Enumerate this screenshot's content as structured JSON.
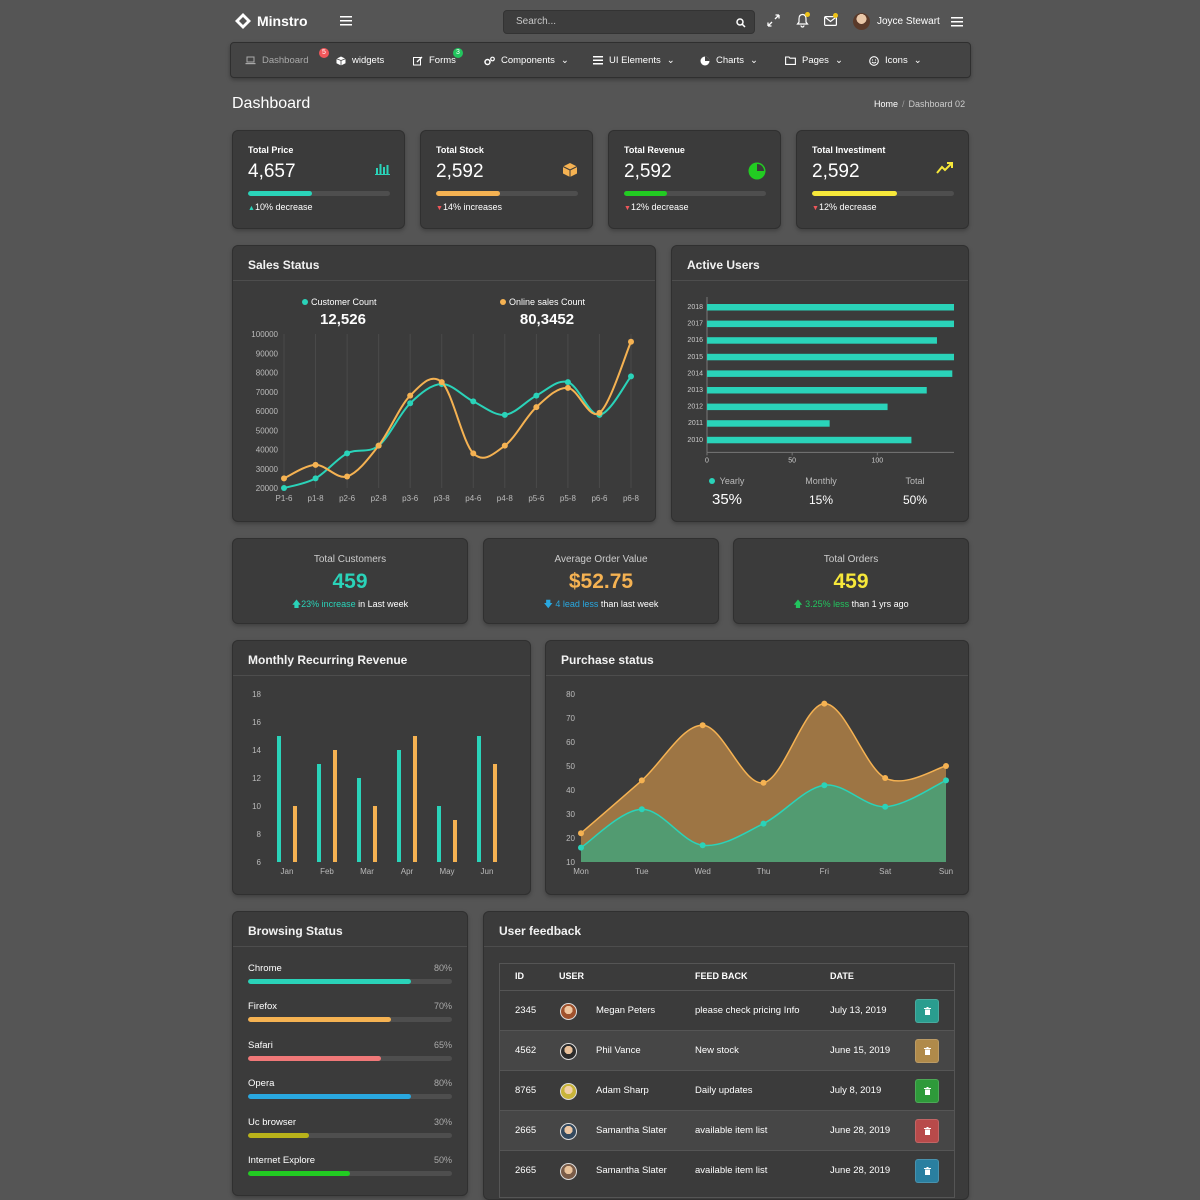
{
  "header": {
    "brand": "Minstro",
    "search_placeholder": "Search...",
    "username": "Joyce Stewart"
  },
  "nav": {
    "items": [
      {
        "label": "Dashboard",
        "badge": "5"
      },
      {
        "label": "widgets"
      },
      {
        "label": "Forms",
        "badge": "3"
      },
      {
        "label": "Components"
      },
      {
        "label": "UI Elements"
      },
      {
        "label": "Charts"
      },
      {
        "label": "Pages"
      },
      {
        "label": "Icons"
      }
    ],
    "badge_colors": {
      "dashboard": "#f0565a",
      "forms": "#22c55e"
    }
  },
  "page": {
    "title": "Dashboard",
    "breadcrumb": {
      "home": "Home",
      "current": "Dashboard 02"
    }
  },
  "stats": [
    {
      "title": "Total Price",
      "value": "4,657",
      "progress": 0.45,
      "color": "#2ad3b9",
      "trend": "up",
      "foot": "10% decrease",
      "icon": "bar-chart-icon"
    },
    {
      "title": "Total Stock",
      "value": "2,592",
      "progress": 0.45,
      "color": "#f5b252",
      "trend": "down",
      "foot": "14% increases",
      "icon": "cube-icon"
    },
    {
      "title": "Total Revenue",
      "value": "2,592",
      "progress": 0.3,
      "color": "#22cc22",
      "trend": "down",
      "foot": "12% decrease",
      "icon": "pie-chart-icon"
    },
    {
      "title": "Total Investiment",
      "value": "2,592",
      "progress": 0.6,
      "color": "#f7e83a",
      "trend": "down",
      "foot": "12% decrease",
      "icon": "trending-up-icon"
    }
  ],
  "sales_status": {
    "title": "Sales Status",
    "legend": [
      {
        "label": "Customer Count",
        "value": "12,526",
        "color": "#2ad3b9"
      },
      {
        "label": "Online sales Count",
        "value": "80,3452",
        "color": "#f5b252"
      }
    ]
  },
  "active_users": {
    "title": "Active Users",
    "summary": [
      {
        "label": "Yearly",
        "value": "35%"
      },
      {
        "label": "Monthly",
        "value": "15%"
      },
      {
        "label": "Total",
        "value": "50%"
      }
    ]
  },
  "kpis": [
    {
      "label": "Total Customers",
      "value": "459",
      "color": "#2ad3b9",
      "arrow": "up",
      "highlight": "23% increase",
      "rest": " in Last week",
      "hl_color": "#2ad3b9"
    },
    {
      "label": "Average Order Value",
      "value": "$52.75",
      "color": "#f5b252",
      "arrow": "down",
      "highlight": "4 lead less",
      "rest": " than last week",
      "hl_color": "#29a8e0"
    },
    {
      "label": "Total Orders",
      "value": "459",
      "color": "#f7e83a",
      "arrow": "up",
      "highlight": "3.25% less",
      "rest": " than 1 yrs ago",
      "hl_color": "#22c55e"
    }
  ],
  "mrr": {
    "title": "Monthly Recurring Revenue"
  },
  "purchase": {
    "title": "Purchase status"
  },
  "browsing": {
    "title": "Browsing Status",
    "items": [
      {
        "name": "Chrome",
        "pct": "80%",
        "value": 0.8,
        "color": "#2ad3b9"
      },
      {
        "name": "Firefox",
        "pct": "70%",
        "value": 0.7,
        "color": "#f5b252"
      },
      {
        "name": "Safari",
        "pct": "65%",
        "value": 0.65,
        "color": "#f07878"
      },
      {
        "name": "Opera",
        "pct": "80%",
        "value": 0.8,
        "color": "#29a8e0"
      },
      {
        "name": "Uc browser",
        "pct": "30%",
        "value": 0.3,
        "color": "#b9b21a"
      },
      {
        "name": "Internet Explore",
        "pct": "50%",
        "value": 0.5,
        "color": "#22cc22"
      }
    ]
  },
  "feedback": {
    "title": "User feedback",
    "columns": [
      "ID",
      "USER",
      "FEED BACK",
      "DATE"
    ],
    "rows": [
      {
        "id": "2345",
        "user": "Megan Peters",
        "feedback": "please check pricing Info",
        "date": "July 13, 2019",
        "btn_color": "#2a9d8f"
      },
      {
        "id": "4562",
        "user": "Phil Vance",
        "feedback": "New stock",
        "date": "June 15, 2019",
        "btn_color": "#b08a4a"
      },
      {
        "id": "8765",
        "user": "Adam Sharp",
        "feedback": "Daily updates",
        "date": "July 8, 2019",
        "btn_color": "#2e9a3a"
      },
      {
        "id": "2665",
        "user": "Samantha Slater",
        "feedback": "available item list",
        "date": "June 28, 2019",
        "btn_color": "#b84a4a"
      },
      {
        "id": "2665",
        "user": "Samantha Slater",
        "feedback": "available item list",
        "date": "June 28, 2019",
        "btn_color": "#2a7fa0"
      }
    ]
  },
  "chart_data": [
    {
      "type": "line",
      "title": "Sales Status",
      "categories": [
        "P1-6",
        "p1-8",
        "p2-6",
        "p2-8",
        "p3-6",
        "p3-8",
        "p4-6",
        "p4-8",
        "p5-6",
        "p5-8",
        "p6-6",
        "p6-8"
      ],
      "ylim": [
        20000,
        100000
      ],
      "yticks": [
        20000,
        30000,
        40000,
        50000,
        60000,
        70000,
        80000,
        90000,
        100000
      ],
      "series": [
        {
          "name": "Customer Count",
          "color": "#2ad3b9",
          "values": [
            20000,
            25000,
            38000,
            42000,
            64000,
            74000,
            65000,
            58000,
            68000,
            75000,
            58000,
            78000
          ]
        },
        {
          "name": "Online sales Count",
          "color": "#f5b252",
          "values": [
            25000,
            32000,
            26000,
            42000,
            68000,
            75000,
            38000,
            42000,
            62000,
            72000,
            59000,
            96000
          ]
        }
      ],
      "grid": true
    },
    {
      "type": "bar",
      "orientation": "horizontal",
      "title": "Active Users",
      "categories": [
        "2018",
        "2017",
        "2016",
        "2015",
        "2014",
        "2013",
        "2012",
        "2011",
        "2010"
      ],
      "values": [
        145,
        145,
        135,
        145,
        144,
        129,
        106,
        72,
        120
      ],
      "xlim": [
        0,
        145
      ],
      "xticks": [
        0,
        50,
        100
      ],
      "color": "#2ad3b9"
    },
    {
      "type": "bar",
      "title": "Monthly Recurring Revenue",
      "categories": [
        "Jan",
        "Feb",
        "Mar",
        "Apr",
        "May",
        "Jun"
      ],
      "ylim": [
        6,
        18
      ],
      "yticks": [
        6,
        8,
        10,
        12,
        14,
        16,
        18
      ],
      "series": [
        {
          "color": "#2ad3b9",
          "values": [
            15,
            13,
            12,
            14,
            10,
            15
          ]
        },
        {
          "color": "#f5b252",
          "values": [
            10,
            14,
            10,
            15,
            9,
            13
          ]
        }
      ]
    },
    {
      "type": "area",
      "title": "Purchase status",
      "categories": [
        "Mon",
        "Tue",
        "Wed",
        "Thu",
        "Fri",
        "Sat",
        "Sun"
      ],
      "ylim": [
        10,
        80
      ],
      "yticks": [
        10,
        20,
        30,
        40,
        50,
        60,
        70,
        80
      ],
      "series": [
        {
          "color": "#f5b252",
          "values": [
            22,
            44,
            67,
            43,
            76,
            45,
            50
          ]
        },
        {
          "color": "#2ad3b9",
          "values": [
            16,
            32,
            17,
            26,
            42,
            33,
            44
          ]
        }
      ]
    }
  ]
}
